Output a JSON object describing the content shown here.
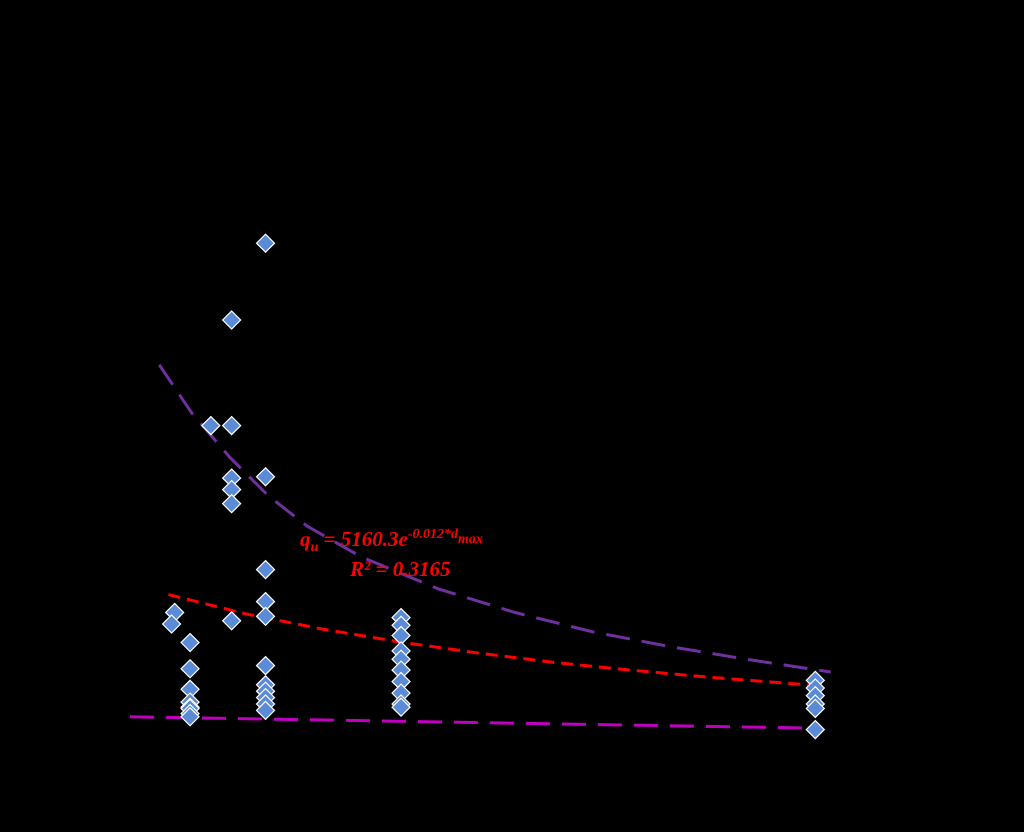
{
  "chart_data": {
    "type": "scatter",
    "title": "",
    "xlabel": "",
    "ylabel": "",
    "background": "#000000",
    "marker_color": "#5B8BD6",
    "xlim": [
      0,
      100
    ],
    "ylim": [
      0,
      100
    ],
    "grid": false,
    "legend": "none",
    "series": [
      {
        "marker": "diamond",
        "points": [
          [
            5.8,
            16.8
          ],
          [
            5.4,
            15.0
          ],
          [
            7.8,
            12.1
          ],
          [
            7.8,
            8.0
          ],
          [
            7.8,
            4.8
          ],
          [
            7.8,
            2.8
          ],
          [
            7.8,
            2.0
          ],
          [
            7.8,
            1.8
          ],
          [
            7.8,
            1.0
          ],
          [
            7.8,
            0.5
          ],
          [
            10.5,
            46.0
          ],
          [
            13.2,
            46.0
          ],
          [
            13.2,
            62.5
          ],
          [
            13.2,
            37.8
          ],
          [
            13.2,
            36.0
          ],
          [
            13.2,
            33.8
          ],
          [
            13.2,
            15.5
          ],
          [
            17.6,
            74.5
          ],
          [
            17.6,
            38.0
          ],
          [
            17.6,
            23.5
          ],
          [
            17.6,
            18.5
          ],
          [
            17.6,
            16.2
          ],
          [
            17.6,
            8.5
          ],
          [
            17.6,
            5.5
          ],
          [
            17.6,
            4.5
          ],
          [
            17.6,
            3.5
          ],
          [
            17.6,
            2.5
          ],
          [
            17.6,
            1.5
          ],
          [
            35.2,
            16.0
          ],
          [
            35.2,
            14.8
          ],
          [
            35.2,
            13.2
          ],
          [
            35.2,
            10.8
          ],
          [
            35.2,
            9.5
          ],
          [
            35.2,
            7.8
          ],
          [
            35.2,
            6.0
          ],
          [
            35.2,
            4.2
          ],
          [
            35.2,
            2.5
          ],
          [
            35.2,
            2.0
          ],
          [
            89.0,
            6.2
          ],
          [
            89.0,
            5.0
          ],
          [
            89.0,
            3.8
          ],
          [
            89.0,
            2.5
          ],
          [
            89.0,
            1.8
          ],
          [
            89.0,
            -1.5
          ]
        ]
      }
    ],
    "trendlines": [
      {
        "role": "upper-envelope",
        "color": "#7030A0",
        "dash": "long",
        "points": [
          [
            3.8,
            55.5
          ],
          [
            8,
            48.0
          ],
          [
            13,
            41.0
          ],
          [
            18,
            35.0
          ],
          [
            23,
            30.3
          ],
          [
            30,
            25.5
          ],
          [
            40,
            20.5
          ],
          [
            50,
            16.8
          ],
          [
            60,
            13.8
          ],
          [
            70,
            11.5
          ],
          [
            80,
            9.5
          ],
          [
            91,
            7.5
          ]
        ]
      },
      {
        "role": "fit",
        "color": "#FF0000",
        "dash": "short",
        "points": [
          [
            5,
            19.6
          ],
          [
            15,
            16.6
          ],
          [
            25,
            14.2
          ],
          [
            35,
            12.2
          ],
          [
            45,
            10.5
          ],
          [
            55,
            9.0
          ],
          [
            65,
            7.8
          ],
          [
            75,
            6.7
          ],
          [
            89,
            5.4
          ]
        ]
      },
      {
        "role": "lower-envelope",
        "color": "#C000C0",
        "dash": "long",
        "points": [
          [
            0,
            0.5
          ],
          [
            90,
            -1.3
          ]
        ]
      }
    ],
    "annotations": {
      "equation_main": "q",
      "equation_sub": "u",
      "equation_mid": " = 5160.3e",
      "equation_sup": "-0.012*d",
      "equation_sup_sub": "max",
      "r_squared": "R² = 0.3165",
      "color": "#FF0000"
    }
  }
}
